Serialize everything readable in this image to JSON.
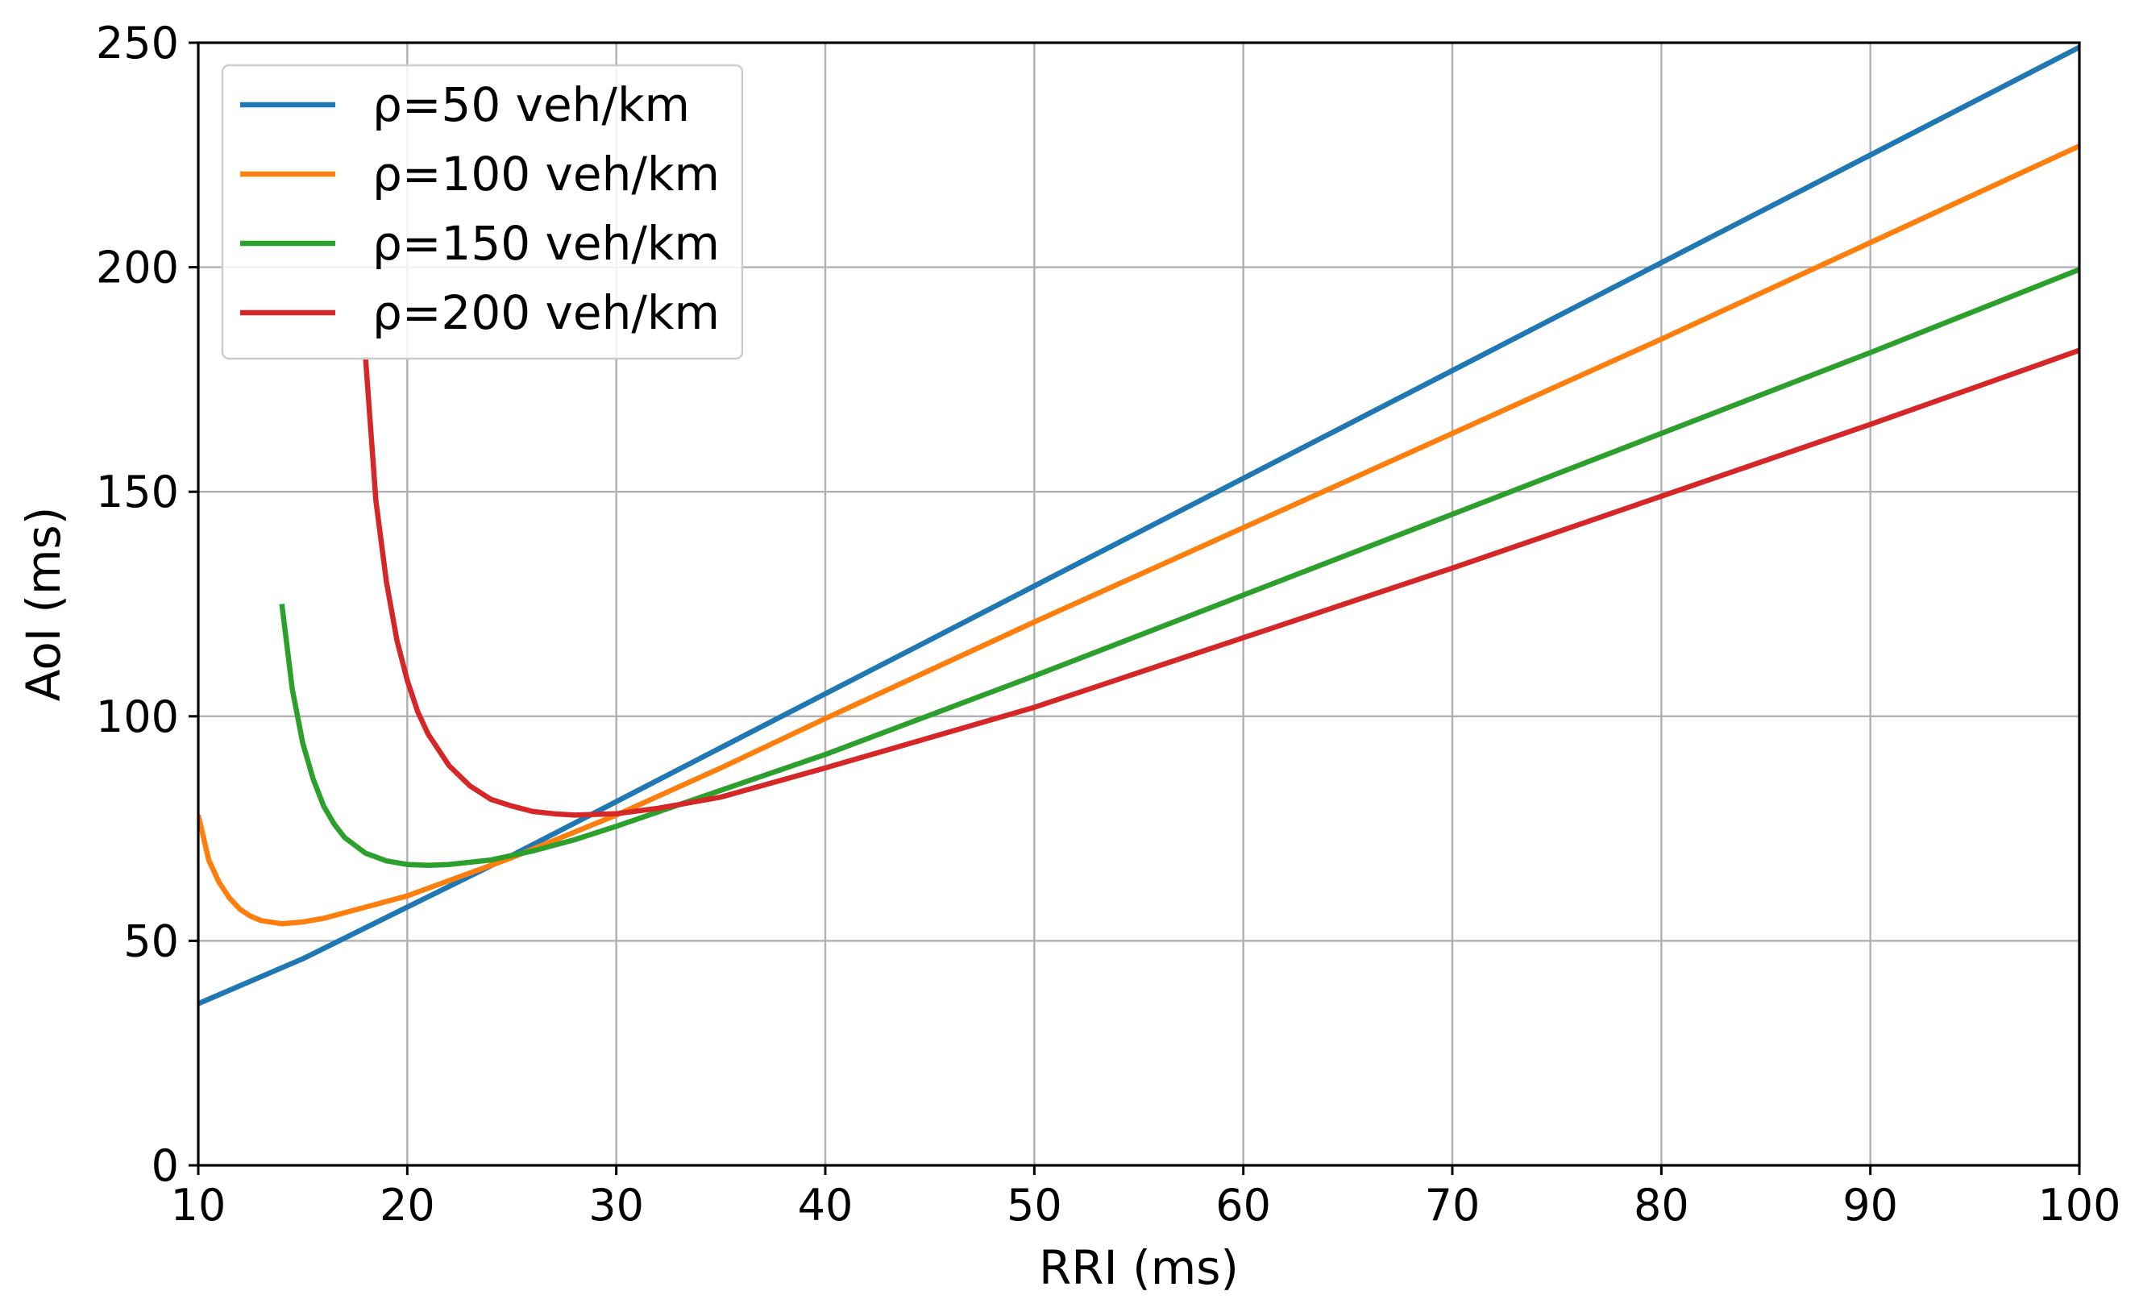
{
  "chart_data": {
    "type": "line",
    "title": "",
    "xlabel": "RRI (ms)",
    "ylabel": "AoI (ms)",
    "xlim": [
      10,
      100
    ],
    "ylim": [
      0,
      250
    ],
    "xticks": [
      10,
      20,
      30,
      40,
      50,
      60,
      70,
      80,
      90,
      100
    ],
    "yticks": [
      0,
      50,
      100,
      150,
      200,
      250
    ],
    "grid": true,
    "legend_position": "upper-left",
    "series": [
      {
        "name": "ρ=50 veh/km",
        "color": "#1f77b4",
        "points": [
          [
            10,
            36
          ],
          [
            15,
            46
          ],
          [
            20,
            57.5
          ],
          [
            25,
            69
          ],
          [
            30,
            81
          ],
          [
            35,
            93
          ],
          [
            40,
            105
          ],
          [
            45,
            117
          ],
          [
            50,
            129
          ],
          [
            60,
            153
          ],
          [
            70,
            177
          ],
          [
            80,
            201
          ],
          [
            90,
            225
          ],
          [
            100,
            249
          ]
        ]
      },
      {
        "name": "ρ=100 veh/km",
        "color": "#ff7f0e",
        "points": [
          [
            10,
            78
          ],
          [
            10.5,
            68
          ],
          [
            11,
            63
          ],
          [
            11.5,
            59.5
          ],
          [
            12,
            57
          ],
          [
            12.5,
            55.5
          ],
          [
            13,
            54.5
          ],
          [
            14,
            53.8
          ],
          [
            15,
            54.2
          ],
          [
            16,
            55
          ],
          [
            18,
            57.5
          ],
          [
            20,
            60
          ],
          [
            25,
            68.5
          ],
          [
            30,
            78
          ],
          [
            35,
            88.5
          ],
          [
            40,
            99.5
          ],
          [
            50,
            121
          ],
          [
            60,
            142
          ],
          [
            70,
            163
          ],
          [
            80,
            184
          ],
          [
            90,
            205.5
          ],
          [
            100,
            227
          ]
        ]
      },
      {
        "name": "ρ=150 veh/km",
        "color": "#2ca02c",
        "points": [
          [
            14,
            125
          ],
          [
            14.5,
            106
          ],
          [
            15,
            94
          ],
          [
            15.5,
            86
          ],
          [
            16,
            80
          ],
          [
            16.5,
            76
          ],
          [
            17,
            73
          ],
          [
            18,
            69.5
          ],
          [
            19,
            67.8
          ],
          [
            20,
            67
          ],
          [
            21,
            66.8
          ],
          [
            22,
            67
          ],
          [
            24,
            68
          ],
          [
            26,
            70
          ],
          [
            28,
            72.5
          ],
          [
            30,
            75.5
          ],
          [
            35,
            83.5
          ],
          [
            40,
            91.5
          ],
          [
            50,
            109
          ],
          [
            60,
            127
          ],
          [
            70,
            145
          ],
          [
            80,
            163
          ],
          [
            90,
            181
          ],
          [
            100,
            199.5
          ]
        ]
      },
      {
        "name": "ρ=200 veh/km",
        "color": "#d62728",
        "points": [
          [
            18,
            180
          ],
          [
            18.5,
            148
          ],
          [
            19,
            130
          ],
          [
            19.5,
            117
          ],
          [
            20,
            108
          ],
          [
            20.5,
            101
          ],
          [
            21,
            96
          ],
          [
            22,
            89
          ],
          [
            23,
            84.5
          ],
          [
            24,
            81.5
          ],
          [
            25,
            80
          ],
          [
            26,
            78.8
          ],
          [
            27,
            78.3
          ],
          [
            28,
            78
          ],
          [
            30,
            78.3
          ],
          [
            32,
            79.5
          ],
          [
            35,
            82
          ],
          [
            40,
            88.5
          ],
          [
            50,
            102
          ],
          [
            60,
            117.5
          ],
          [
            70,
            133
          ],
          [
            80,
            149
          ],
          [
            90,
            165
          ],
          [
            100,
            181.5
          ]
        ]
      }
    ]
  }
}
